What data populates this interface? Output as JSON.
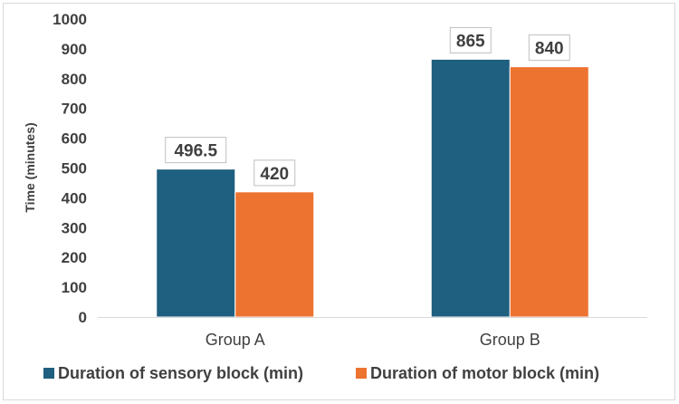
{
  "chart_data": {
    "type": "bar",
    "title": "",
    "xlabel": "",
    "ylabel": "Time (minutes)",
    "categories": [
      "Group A",
      "Group B"
    ],
    "series": [
      {
        "name": "Duration of sensory block (min)",
        "values": [
          496.5,
          865
        ],
        "color": "#1f5f7f"
      },
      {
        "name": "Duration of motor block (min)",
        "values": [
          420,
          840
        ],
        "color": "#ed7331"
      }
    ],
    "ylim": [
      0,
      1000
    ],
    "yticks": [
      "0",
      "100",
      "200",
      "300",
      "400",
      "500",
      "600",
      "700",
      "800",
      "900",
      "1000"
    ],
    "data_labels": [
      [
        "496.5",
        "865"
      ],
      [
        "420",
        "840"
      ]
    ],
    "grid": false,
    "legend_position": "bottom"
  }
}
